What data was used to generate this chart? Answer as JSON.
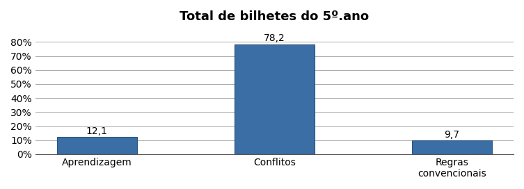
{
  "title": "Total de bilhetes do 5º.ano",
  "categories": [
    "Aprendizagem",
    "Conflitos",
    "Regras\nconvencionais"
  ],
  "values": [
    12.1,
    78.2,
    9.7
  ],
  "bar_color": "#3A6EA5",
  "bar_edge_color": "#2B547E",
  "ylim": [
    0,
    90
  ],
  "yticks": [
    0,
    10,
    20,
    30,
    40,
    50,
    60,
    70,
    80
  ],
  "ytick_labels": [
    "0%",
    "10%",
    "20%",
    "30%",
    "40%",
    "50%",
    "60%",
    "70%",
    "80%"
  ],
  "value_labels": [
    "12,1",
    "78,2",
    "9,7"
  ],
  "title_fontsize": 13,
  "tick_fontsize": 10,
  "label_fontsize": 10,
  "value_label_fontsize": 10,
  "bar_width": 0.45,
  "background_color": "#FFFFFF",
  "grid_color": "#AAAAAA"
}
